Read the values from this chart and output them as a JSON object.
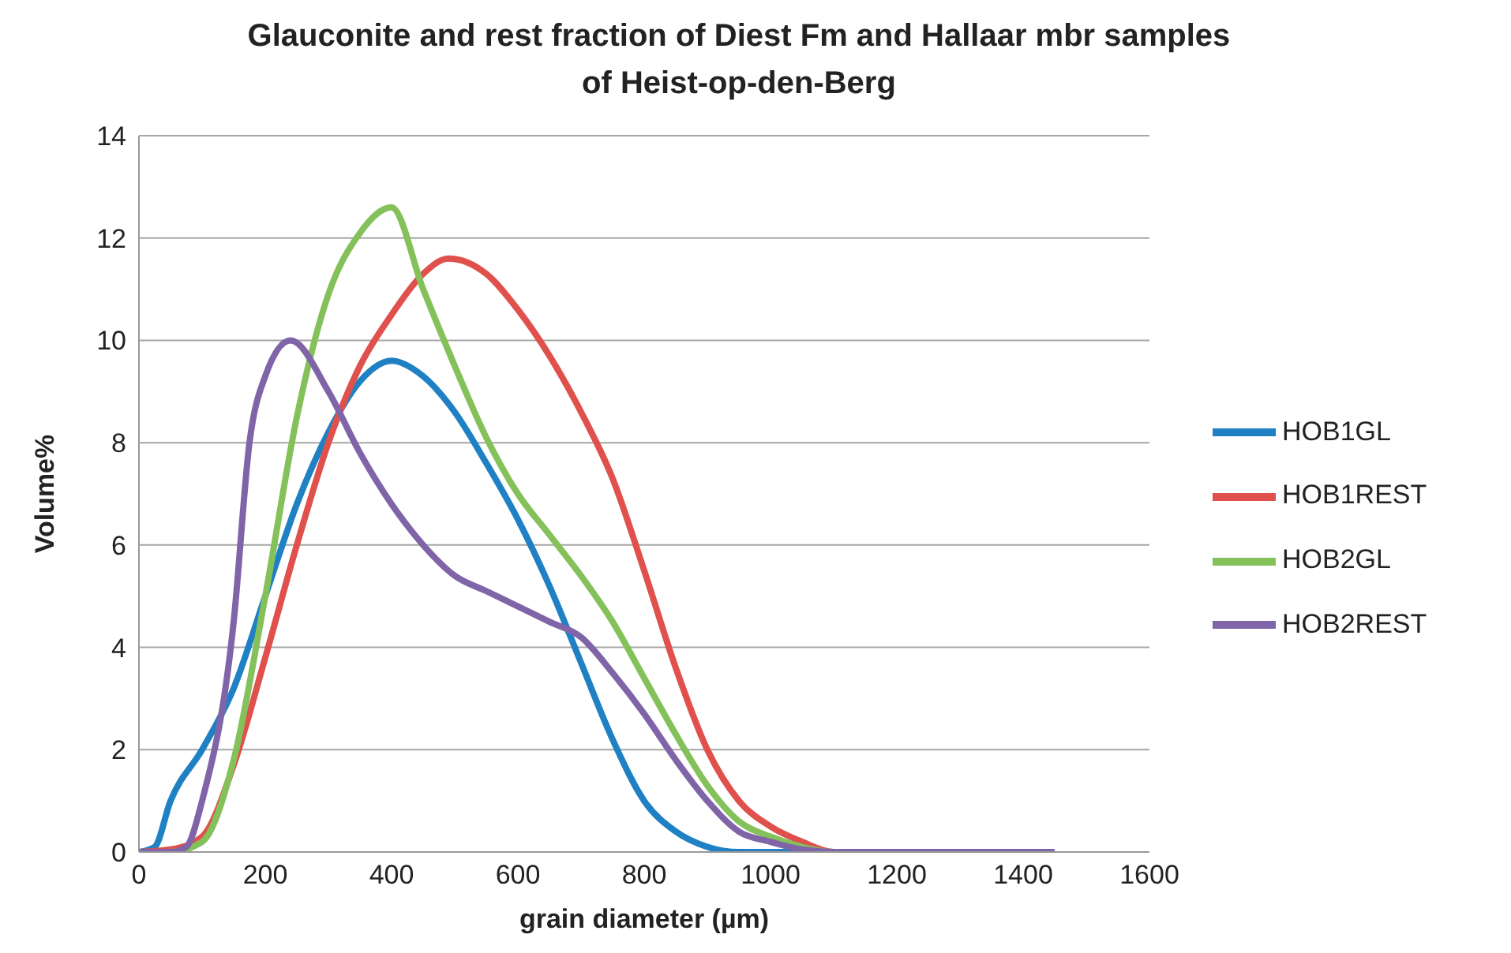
{
  "chart_data": {
    "type": "line",
    "title": "Glauconite and rest fraction of Diest Fm and Hallaar mbr samples of Heist-op-den-Berg",
    "xlabel": "grain diameter (µm)",
    "ylabel": "Volume%",
    "xlim": [
      0,
      1600
    ],
    "xticks": [
      0,
      200,
      400,
      600,
      800,
      1000,
      1200,
      1400,
      1600
    ],
    "ylim": [
      0,
      14
    ],
    "yticks": [
      0,
      2,
      4,
      6,
      8,
      10,
      12,
      14
    ],
    "grid": "y",
    "legend": "right",
    "marker": "none",
    "line_style": "solid",
    "series": [
      {
        "name": "HOB1GL",
        "color": "#1f81c4",
        "x": [
          0,
          25,
          50,
          100,
          150,
          200,
          250,
          300,
          350,
          400,
          450,
          500,
          550,
          600,
          650,
          700,
          750,
          800,
          850,
          900,
          950,
          1000,
          1100
        ],
        "values": [
          0,
          0.1,
          1,
          2,
          3.2,
          5,
          6.8,
          8.2,
          9.2,
          9.6,
          9.3,
          8.6,
          7.6,
          6.5,
          5.2,
          3.7,
          2.2,
          1,
          0.4,
          0.1,
          0,
          0,
          0
        ]
      },
      {
        "name": "HOB1REST",
        "color": "#e0504c",
        "x": [
          0,
          50,
          100,
          150,
          200,
          250,
          300,
          350,
          400,
          450,
          490,
          550,
          600,
          650,
          700,
          750,
          800,
          850,
          900,
          950,
          1000,
          1050,
          1100,
          1200,
          1450
        ],
        "values": [
          0,
          0.05,
          0.3,
          1.7,
          3.8,
          6,
          8,
          9.5,
          10.5,
          11.3,
          11.6,
          11.3,
          10.6,
          9.7,
          8.6,
          7.3,
          5.5,
          3.6,
          2,
          1,
          0.5,
          0.2,
          0,
          0,
          0
        ]
      },
      {
        "name": "HOB2GL",
        "color": "#85c15a",
        "x": [
          0,
          50,
          100,
          150,
          200,
          250,
          300,
          350,
          400,
          450,
          500,
          550,
          600,
          650,
          700,
          750,
          800,
          850,
          900,
          950,
          1000,
          1050,
          1100,
          1450
        ],
        "values": [
          0,
          0,
          0.2,
          1.8,
          5,
          8.5,
          10.9,
          12.1,
          12.6,
          11,
          9.5,
          8.1,
          7,
          6.2,
          5.4,
          4.5,
          3.4,
          2.3,
          1.3,
          0.6,
          0.3,
          0.1,
          0,
          0
        ]
      },
      {
        "name": "HOB2REST",
        "color": "#8064a8",
        "x": [
          0,
          50,
          75,
          100,
          150,
          175,
          200,
          240,
          300,
          350,
          400,
          450,
          500,
          550,
          600,
          650,
          700,
          750,
          800,
          850,
          900,
          950,
          1000,
          1050,
          1100,
          1450
        ],
        "values": [
          0,
          0,
          0.1,
          1,
          4.5,
          8,
          9.3,
          10,
          9,
          7.8,
          6.8,
          6,
          5.4,
          5.1,
          4.8,
          4.5,
          4.2,
          3.5,
          2.7,
          1.8,
          1,
          0.4,
          0.2,
          0.05,
          0,
          0
        ]
      }
    ]
  }
}
